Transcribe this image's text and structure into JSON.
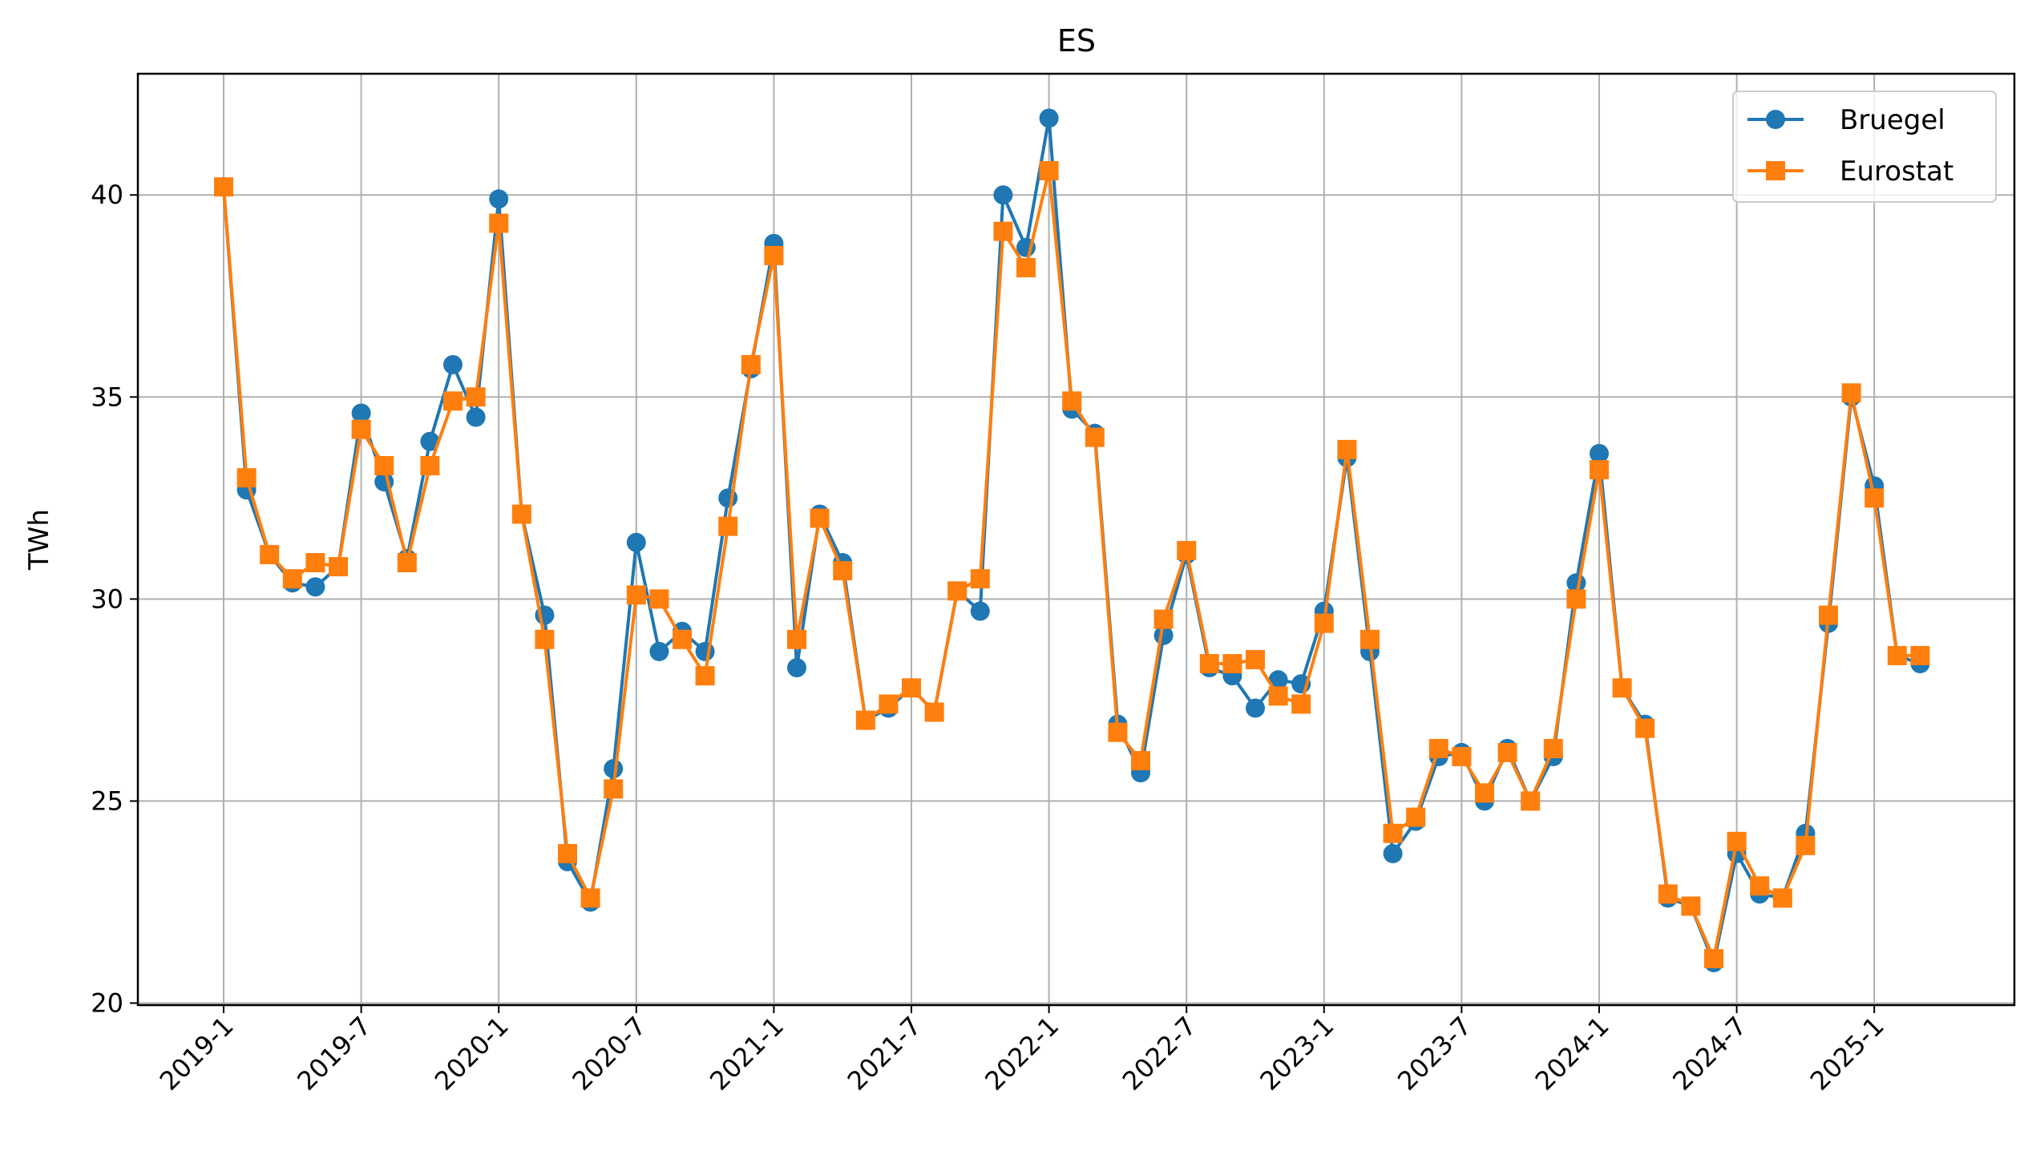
{
  "chart_data": {
    "type": "line",
    "title": "ES",
    "xlabel": "",
    "ylabel": "TWh",
    "ylim": [
      19.95,
      43.0
    ],
    "yticks": [
      20,
      25,
      30,
      35,
      40
    ],
    "xtick_labels": [
      "2019-1",
      "2019-7",
      "2020-1",
      "2020-7",
      "2021-1",
      "2021-7",
      "2022-1",
      "2022-7",
      "2023-1",
      "2023-7",
      "2024-1",
      "2024-7",
      "2025-1"
    ],
    "grid": true,
    "legend_position": "top-right",
    "x": [
      "2019-1",
      "2019-2",
      "2019-3",
      "2019-4",
      "2019-5",
      "2019-6",
      "2019-7",
      "2019-8",
      "2019-9",
      "2019-10",
      "2019-11",
      "2019-12",
      "2020-1",
      "2020-2",
      "2020-3",
      "2020-4",
      "2020-5",
      "2020-6",
      "2020-7",
      "2020-8",
      "2020-9",
      "2020-10",
      "2020-11",
      "2020-12",
      "2021-1",
      "2021-2",
      "2021-3",
      "2021-4",
      "2021-5",
      "2021-6",
      "2021-7",
      "2021-8",
      "2021-9",
      "2021-10",
      "2021-11",
      "2021-12",
      "2022-1",
      "2022-2",
      "2022-3",
      "2022-4",
      "2022-5",
      "2022-6",
      "2022-7",
      "2022-8",
      "2022-9",
      "2022-10",
      "2022-11",
      "2022-12",
      "2023-1",
      "2023-2",
      "2023-3",
      "2023-4",
      "2023-5",
      "2023-6",
      "2023-7",
      "2023-8",
      "2023-9",
      "2023-10",
      "2023-11",
      "2023-12",
      "2024-1",
      "2024-2",
      "2024-3",
      "2024-4",
      "2024-5",
      "2024-6",
      "2024-7",
      "2024-8",
      "2024-9",
      "2024-10",
      "2024-11",
      "2024-12",
      "2025-1",
      "2025-2",
      "2025-3"
    ],
    "series": [
      {
        "name": "Bruegel",
        "color": "#1f77b4",
        "marker": "circle",
        "values": [
          40.2,
          32.7,
          31.1,
          30.4,
          30.3,
          30.8,
          34.6,
          32.9,
          31.0,
          33.9,
          35.8,
          34.5,
          39.9,
          32.1,
          29.6,
          23.5,
          22.5,
          25.8,
          31.4,
          28.7,
          29.2,
          28.7,
          32.5,
          35.7,
          38.8,
          28.3,
          32.1,
          30.9,
          27.0,
          27.3,
          27.8,
          27.2,
          30.2,
          29.7,
          40.0,
          38.7,
          41.9,
          34.7,
          34.1,
          26.9,
          25.7,
          29.1,
          31.1,
          28.3,
          28.1,
          27.3,
          28.0,
          27.9,
          29.7,
          33.5,
          28.7,
          23.7,
          24.5,
          26.1,
          26.2,
          25.0,
          26.3,
          25.0,
          26.1,
          30.4,
          33.6,
          27.8,
          26.9,
          22.6,
          22.4,
          21.0,
          23.7,
          22.7,
          22.6,
          24.2,
          29.4,
          35.0,
          32.8,
          28.6,
          28.4
        ]
      },
      {
        "name": "Eurostat",
        "color": "#ff7f0e",
        "marker": "square",
        "values": [
          40.2,
          33.0,
          31.1,
          30.5,
          30.9,
          30.8,
          34.2,
          33.3,
          30.9,
          33.3,
          34.9,
          35.0,
          39.3,
          32.1,
          29.0,
          23.7,
          22.6,
          25.3,
          30.1,
          30.0,
          29.0,
          28.1,
          31.8,
          35.8,
          38.5,
          29.0,
          32.0,
          30.7,
          27.0,
          27.4,
          27.8,
          27.2,
          30.2,
          30.5,
          39.1,
          38.2,
          40.6,
          34.9,
          34.0,
          26.7,
          26.0,
          29.5,
          31.2,
          28.4,
          28.4,
          28.5,
          27.6,
          27.4,
          29.4,
          33.7,
          29.0,
          24.2,
          24.6,
          26.3,
          26.1,
          25.2,
          26.2,
          25.0,
          26.3,
          30.0,
          33.2,
          27.8,
          26.8,
          22.7,
          22.4,
          21.1,
          24.0,
          22.9,
          22.6,
          23.9,
          29.6,
          35.1,
          32.5,
          28.6,
          28.6
        ]
      }
    ]
  }
}
